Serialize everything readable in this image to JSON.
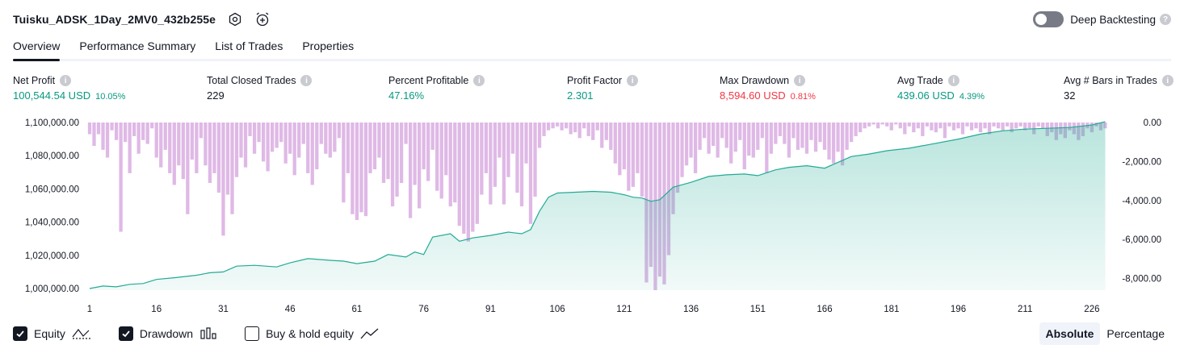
{
  "header": {
    "strategy_name": "Tuisku_ADSK_1Day_2MV0_432b255e",
    "settings_icon": "gear-icon",
    "alert_icon": "alarm-clock-plus-icon",
    "deep_backtesting_label": "Deep Backtesting",
    "deep_backtesting_enabled": false
  },
  "tabs": [
    {
      "label": "Overview",
      "active": true
    },
    {
      "label": "Performance Summary",
      "active": false
    },
    {
      "label": "List of Trades",
      "active": false
    },
    {
      "label": "Properties",
      "active": false
    }
  ],
  "metrics": [
    {
      "label": "Net Profit",
      "value": "100,544.54 USD",
      "sub": "10.05%",
      "tone": "green"
    },
    {
      "label": "Total Closed Trades",
      "value": "229",
      "sub": "",
      "tone": "dark"
    },
    {
      "label": "Percent Profitable",
      "value": "47.16%",
      "sub": "",
      "tone": "green"
    },
    {
      "label": "Profit Factor",
      "value": "2.301",
      "sub": "",
      "tone": "green"
    },
    {
      "label": "Max Drawdown",
      "value": "8,594.60 USD",
      "sub": "0.81%",
      "tone": "red"
    },
    {
      "label": "Avg Trade",
      "value": "439.06 USD",
      "sub": "4.39%",
      "tone": "green"
    },
    {
      "label": "Avg # Bars in Trades",
      "value": "32",
      "sub": "",
      "tone": "dark"
    }
  ],
  "colors": {
    "equity_line": "#22ab94",
    "equity_fill": "#22ab94",
    "drawdown_bar": "#ce93d8",
    "positive": "#089981",
    "negative": "#f23645"
  },
  "legend": [
    {
      "label": "Equity",
      "checked": true,
      "icon": "equity-line-icon"
    },
    {
      "label": "Drawdown",
      "checked": true,
      "icon": "drawdown-bars-icon"
    },
    {
      "label": "Buy & hold equity",
      "checked": false,
      "icon": "buy-hold-line-icon"
    }
  ],
  "display_mode": {
    "options": [
      "Absolute",
      "Percentage"
    ],
    "selected": "Absolute"
  },
  "chart_data": {
    "type": "line",
    "x_label": "",
    "left_axis": {
      "label": "",
      "ticks": [
        "1,000,000.00",
        "1,020,000.00",
        "1,040,000.00",
        "1,060,000.00",
        "1,080,000.00",
        "1,100,000.00"
      ],
      "range": [
        1000000,
        1100000
      ]
    },
    "right_axis": {
      "label": "",
      "ticks": [
        "0.00",
        "-2,000.00",
        "-4,000.00",
        "-6,000.00",
        "-8,000.00"
      ],
      "range": [
        -8594.6,
        0
      ]
    },
    "x_ticks": [
      1,
      16,
      31,
      46,
      61,
      76,
      91,
      106,
      121,
      136,
      151,
      166,
      181,
      196,
      211,
      226
    ],
    "x_range": [
      1,
      230
    ],
    "equity": [
      [
        1,
        1000000
      ],
      [
        4,
        1001500
      ],
      [
        7,
        1001000
      ],
      [
        10,
        1002500
      ],
      [
        13,
        1003000
      ],
      [
        16,
        1005500
      ],
      [
        20,
        1006500
      ],
      [
        25,
        1008000
      ],
      [
        28,
        1009500
      ],
      [
        31,
        1010000
      ],
      [
        34,
        1013500
      ],
      [
        38,
        1014000
      ],
      [
        43,
        1013000
      ],
      [
        46,
        1015500
      ],
      [
        50,
        1018000
      ],
      [
        55,
        1017000
      ],
      [
        58,
        1016500
      ],
      [
        61,
        1015000
      ],
      [
        65,
        1016500
      ],
      [
        68,
        1020500
      ],
      [
        72,
        1019000
      ],
      [
        74,
        1022000
      ],
      [
        76,
        1020500
      ],
      [
        78,
        1031000
      ],
      [
        82,
        1033000
      ],
      [
        84,
        1028500
      ],
      [
        87,
        1030500
      ],
      [
        91,
        1032000
      ],
      [
        95,
        1034000
      ],
      [
        98,
        1033000
      ],
      [
        100,
        1035500
      ],
      [
        102,
        1046500
      ],
      [
        104,
        1055000
      ],
      [
        106,
        1057500
      ],
      [
        110,
        1058000
      ],
      [
        114,
        1058500
      ],
      [
        118,
        1058000
      ],
      [
        121,
        1056500
      ],
      [
        123,
        1055000
      ],
      [
        125,
        1054500
      ],
      [
        127,
        1052500
      ],
      [
        129,
        1053500
      ],
      [
        132,
        1061000
      ],
      [
        136,
        1064000
      ],
      [
        140,
        1067500
      ],
      [
        144,
        1068500
      ],
      [
        148,
        1069000
      ],
      [
        151,
        1068000
      ],
      [
        155,
        1071500
      ],
      [
        158,
        1073000
      ],
      [
        162,
        1074000
      ],
      [
        166,
        1072500
      ],
      [
        169,
        1076000
      ],
      [
        172,
        1079500
      ],
      [
        176,
        1081000
      ],
      [
        180,
        1083000
      ],
      [
        185,
        1084500
      ],
      [
        190,
        1087000
      ],
      [
        196,
        1090000
      ],
      [
        201,
        1093000
      ],
      [
        206,
        1095000
      ],
      [
        211,
        1096000
      ],
      [
        216,
        1096500
      ],
      [
        221,
        1097000
      ],
      [
        226,
        1098500
      ],
      [
        229,
        1100544.54
      ]
    ],
    "drawdown": [
      [
        1,
        -600
      ],
      [
        2,
        -1200
      ],
      [
        3,
        -600
      ],
      [
        4,
        -1400
      ],
      [
        5,
        -1800
      ],
      [
        6,
        -400
      ],
      [
        7,
        -900
      ],
      [
        8,
        -5600
      ],
      [
        9,
        -1000
      ],
      [
        10,
        -2600
      ],
      [
        11,
        -700
      ],
      [
        12,
        -1600
      ],
      [
        13,
        -900
      ],
      [
        14,
        -1100
      ],
      [
        15,
        -300
      ],
      [
        16,
        -1800
      ],
      [
        17,
        -2300
      ],
      [
        18,
        -1400
      ],
      [
        19,
        -2600
      ],
      [
        20,
        -3200
      ],
      [
        21,
        -2200
      ],
      [
        22,
        -2900
      ],
      [
        23,
        -4700
      ],
      [
        24,
        -1900
      ],
      [
        25,
        -2600
      ],
      [
        26,
        -800
      ],
      [
        27,
        -2200
      ],
      [
        28,
        -3100
      ],
      [
        29,
        -2600
      ],
      [
        30,
        -3600
      ],
      [
        31,
        -5800
      ],
      [
        32,
        -3700
      ],
      [
        33,
        -4700
      ],
      [
        34,
        -2800
      ],
      [
        35,
        -1800
      ],
      [
        36,
        -2300
      ],
      [
        37,
        -700
      ],
      [
        38,
        -1600
      ],
      [
        39,
        -1000
      ],
      [
        40,
        -2000
      ],
      [
        41,
        -2500
      ],
      [
        42,
        -1500
      ],
      [
        43,
        -1300
      ],
      [
        44,
        -1000
      ],
      [
        45,
        -2100
      ],
      [
        46,
        -1600
      ],
      [
        47,
        -2700
      ],
      [
        48,
        -1800
      ],
      [
        49,
        -1100
      ],
      [
        50,
        -2600
      ],
      [
        51,
        -3200
      ],
      [
        52,
        -2400
      ],
      [
        53,
        -1100
      ],
      [
        54,
        -1600
      ],
      [
        55,
        -1800
      ],
      [
        56,
        -1500
      ],
      [
        57,
        -800
      ],
      [
        58,
        -4100
      ],
      [
        59,
        -2600
      ],
      [
        60,
        -4700
      ],
      [
        61,
        -5000
      ],
      [
        62,
        -4600
      ],
      [
        63,
        -4800
      ],
      [
        64,
        -2600
      ],
      [
        65,
        -2400
      ],
      [
        66,
        -1800
      ],
      [
        67,
        -3100
      ],
      [
        68,
        -2900
      ],
      [
        69,
        -4300
      ],
      [
        70,
        -3800
      ],
      [
        71,
        -3100
      ],
      [
        72,
        -1100
      ],
      [
        73,
        -4900
      ],
      [
        74,
        -3200
      ],
      [
        75,
        -4400
      ],
      [
        76,
        -2400
      ],
      [
        77,
        -3000
      ],
      [
        78,
        -1400
      ],
      [
        79,
        -3500
      ],
      [
        80,
        -3900
      ],
      [
        81,
        -2700
      ],
      [
        82,
        -4300
      ],
      [
        83,
        -4100
      ],
      [
        84,
        -5300
      ],
      [
        85,
        -5700
      ],
      [
        86,
        -6100
      ],
      [
        87,
        -5600
      ],
      [
        88,
        -5200
      ],
      [
        89,
        -3700
      ],
      [
        90,
        -2600
      ],
      [
        91,
        -4200
      ],
      [
        92,
        -3300
      ],
      [
        93,
        -1800
      ],
      [
        94,
        -4200
      ],
      [
        95,
        -2800
      ],
      [
        96,
        -1600
      ],
      [
        97,
        -3600
      ],
      [
        98,
        -4300
      ],
      [
        99,
        -2100
      ],
      [
        100,
        -5200
      ],
      [
        101,
        -3800
      ],
      [
        102,
        -1300
      ],
      [
        103,
        -700
      ],
      [
        104,
        -400
      ],
      [
        105,
        -300
      ],
      [
        106,
        -200
      ],
      [
        107,
        -400
      ],
      [
        108,
        -300
      ],
      [
        109,
        -600
      ],
      [
        110,
        -500
      ],
      [
        111,
        -800
      ],
      [
        112,
        -300
      ],
      [
        113,
        -700
      ],
      [
        114,
        -900
      ],
      [
        115,
        -400
      ],
      [
        116,
        -1300
      ],
      [
        117,
        -900
      ],
      [
        118,
        -1400
      ],
      [
        119,
        -2100
      ],
      [
        120,
        -2700
      ],
      [
        121,
        -2400
      ],
      [
        122,
        -3500
      ],
      [
        123,
        -3300
      ],
      [
        124,
        -2600
      ],
      [
        125,
        -3800
      ],
      [
        126,
        -8200
      ],
      [
        127,
        -7400
      ],
      [
        128,
        -8594.6
      ],
      [
        129,
        -7900
      ],
      [
        130,
        -8300
      ],
      [
        131,
        -6800
      ],
      [
        132,
        -4700
      ],
      [
        133,
        -3600
      ],
      [
        134,
        -2800
      ],
      [
        135,
        -2200
      ],
      [
        136,
        -1800
      ],
      [
        137,
        -2600
      ],
      [
        138,
        -1400
      ],
      [
        139,
        -800
      ],
      [
        140,
        -1600
      ],
      [
        141,
        -1200
      ],
      [
        142,
        -1800
      ],
      [
        143,
        -800
      ],
      [
        144,
        -1300
      ],
      [
        145,
        -2100
      ],
      [
        146,
        -1500
      ],
      [
        147,
        -900
      ],
      [
        148,
        -2400
      ],
      [
        149,
        -1700
      ],
      [
        150,
        -1800
      ],
      [
        151,
        -1400
      ],
      [
        152,
        -800
      ],
      [
        153,
        -2600
      ],
      [
        154,
        -1600
      ],
      [
        155,
        -1100
      ],
      [
        156,
        -700
      ],
      [
        157,
        -1100
      ],
      [
        158,
        -1800
      ],
      [
        159,
        -800
      ],
      [
        160,
        -1400
      ],
      [
        161,
        -1300
      ],
      [
        162,
        -1600
      ],
      [
        163,
        -900
      ],
      [
        164,
        -1500
      ],
      [
        165,
        -1000
      ],
      [
        166,
        -1400
      ],
      [
        167,
        -1900
      ],
      [
        168,
        -2100
      ],
      [
        169,
        -1500
      ],
      [
        170,
        -2200
      ],
      [
        171,
        -1400
      ],
      [
        172,
        -1000
      ],
      [
        173,
        -700
      ],
      [
        174,
        -500
      ],
      [
        175,
        -300
      ],
      [
        176,
        -200
      ],
      [
        177,
        -100
      ],
      [
        178,
        -300
      ],
      [
        179,
        -100
      ],
      [
        180,
        -200
      ],
      [
        181,
        -400
      ],
      [
        182,
        -100
      ],
      [
        183,
        -300
      ],
      [
        184,
        -600
      ],
      [
        185,
        -200
      ],
      [
        186,
        -500
      ],
      [
        187,
        -300
      ],
      [
        188,
        -700
      ],
      [
        189,
        -200
      ],
      [
        190,
        -400
      ],
      [
        191,
        -500
      ],
      [
        192,
        -300
      ],
      [
        193,
        -800
      ],
      [
        194,
        -200
      ],
      [
        195,
        -400
      ],
      [
        196,
        -300
      ],
      [
        197,
        -600
      ],
      [
        198,
        -200
      ],
      [
        199,
        -400
      ],
      [
        200,
        -300
      ],
      [
        201,
        -500
      ],
      [
        202,
        -300
      ],
      [
        203,
        -600
      ],
      [
        204,
        -200
      ],
      [
        205,
        -300
      ],
      [
        206,
        -400
      ],
      [
        207,
        -200
      ],
      [
        208,
        -500
      ],
      [
        209,
        -300
      ],
      [
        210,
        -200
      ],
      [
        211,
        -400
      ],
      [
        212,
        -300
      ],
      [
        213,
        -600
      ],
      [
        214,
        -200
      ],
      [
        215,
        -300
      ],
      [
        216,
        -700
      ],
      [
        217,
        -500
      ],
      [
        218,
        -900
      ],
      [
        219,
        -600
      ],
      [
        220,
        -800
      ],
      [
        221,
        -400
      ],
      [
        222,
        -600
      ],
      [
        223,
        -900
      ],
      [
        224,
        -700
      ],
      [
        225,
        -300
      ],
      [
        226,
        -500
      ],
      [
        227,
        -200
      ],
      [
        228,
        -400
      ],
      [
        229,
        -300
      ]
    ]
  }
}
